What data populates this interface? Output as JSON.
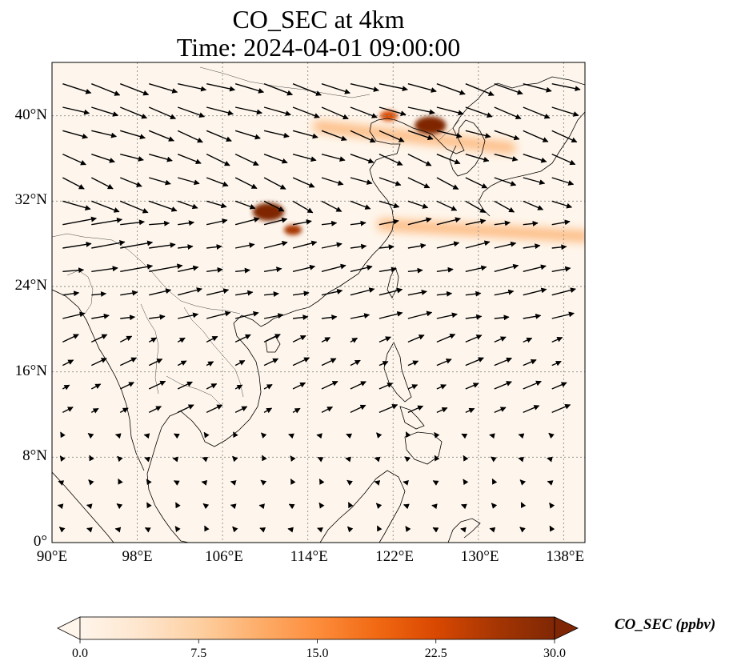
{
  "title": {
    "line1": "CO_SEC at 4km",
    "line2": "Time: 2024-04-01 09:00:00"
  },
  "map": {
    "projection": "PlateCarree",
    "lon_range": [
      90,
      140
    ],
    "lat_range": [
      0,
      45
    ],
    "x_ticks": [
      "90°E",
      "98°E",
      "106°E",
      "114°E",
      "122°E",
      "130°E",
      "138°E"
    ],
    "x_tick_values": [
      90,
      98,
      106,
      114,
      122,
      130,
      138
    ],
    "y_ticks": [
      "0°",
      "8°N",
      "16°N",
      "24°N",
      "32°N",
      "40°N"
    ],
    "y_tick_values": [
      0,
      8,
      16,
      24,
      32,
      40
    ],
    "gridlines": true,
    "vector_field": "wind arrows",
    "hotspots": [
      {
        "lon": 125.5,
        "lat": 39.1,
        "value": 30
      },
      {
        "lon": 121.6,
        "lat": 40.0,
        "value": 22
      },
      {
        "lon": 110.3,
        "lat": 31.0,
        "value": 30
      },
      {
        "lon": 112.6,
        "lat": 29.3,
        "value": 25
      }
    ],
    "plumes": [
      {
        "from": [
          115,
          39
        ],
        "to": [
          133,
          37
        ],
        "value": 10
      },
      {
        "from": [
          121,
          29.8
        ],
        "to": [
          140,
          28.7
        ],
        "value": 12
      }
    ]
  },
  "colorbar": {
    "label": "CO_SEC (ppbv)",
    "ticks": [
      "0.0",
      "7.5",
      "15.0",
      "22.5",
      "30.0"
    ],
    "range": [
      0,
      30
    ],
    "colormap": [
      "#fff5eb",
      "#fee6ce",
      "#fdd0a2",
      "#fdae6b",
      "#fd8d3c",
      "#f16913",
      "#d94801",
      "#a63603",
      "#7f2704"
    ],
    "extend": "both"
  },
  "colors": {
    "background": "#fef6ec",
    "coast": "#000000",
    "border": "#444444",
    "grid": "#888888"
  }
}
